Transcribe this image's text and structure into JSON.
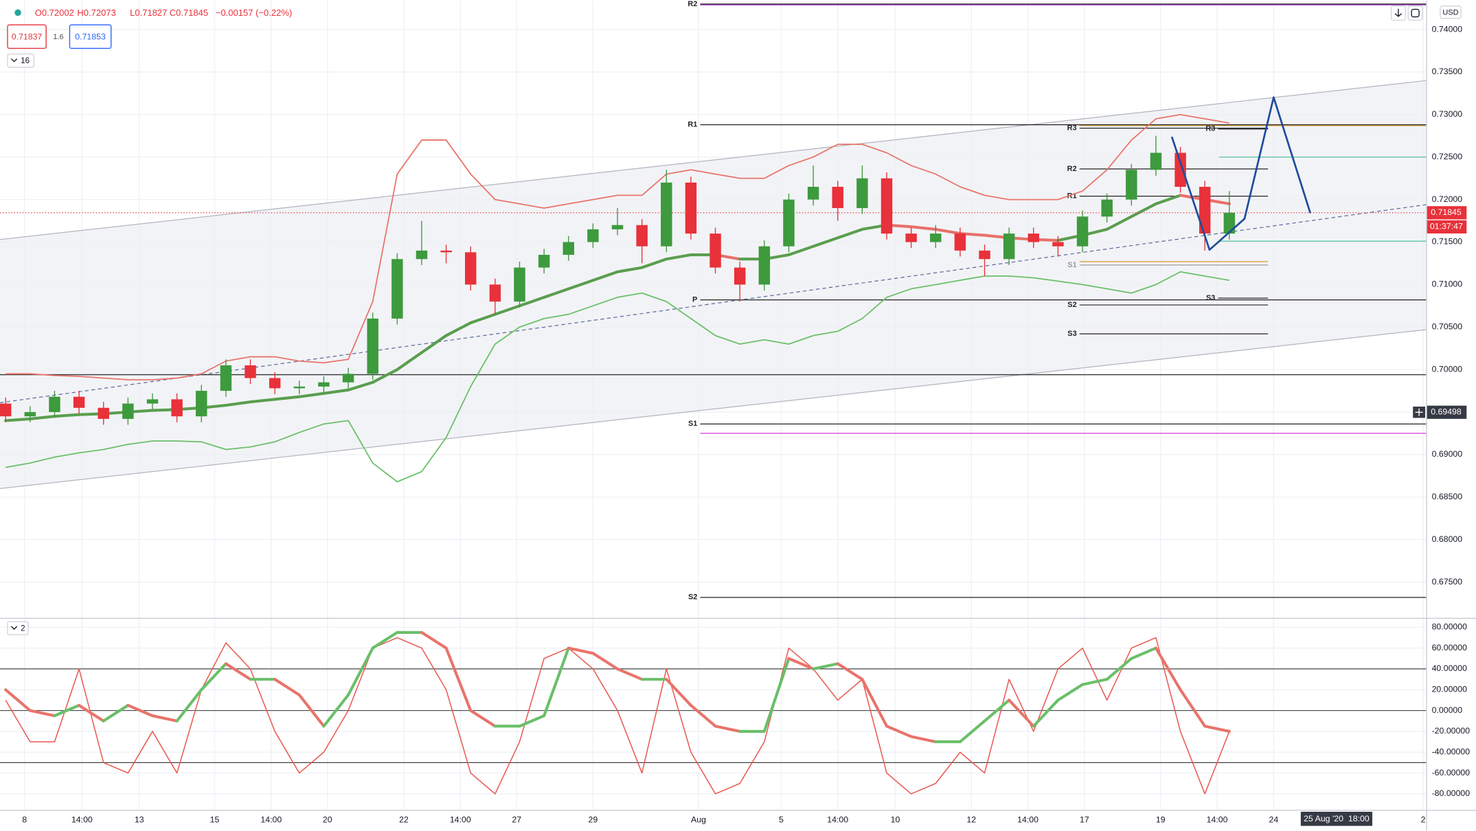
{
  "header": {
    "ohlc": [
      "O0.72002",
      "H0.72073",
      "L0.71827",
      "C0.71845"
    ],
    "change": "−0.00157 (−0.22%)",
    "bid": "0.71837",
    "spread": "1.6",
    "ask": "0.71853",
    "indicator_count": "16",
    "oscillator_count": "2",
    "currency": "USD"
  },
  "chart_data": [
    {
      "type": "candlestick",
      "x": [
        0,
        1,
        2,
        3,
        4,
        5,
        6,
        7,
        8,
        9,
        10,
        11,
        12,
        13,
        14,
        15,
        16,
        17,
        18,
        19,
        20,
        21,
        22,
        23,
        24,
        25,
        26,
        27,
        28,
        29,
        30,
        31,
        32,
        33,
        34,
        35,
        36,
        37,
        38,
        39,
        40,
        41,
        42,
        43,
        44,
        45,
        46,
        47,
        48,
        49,
        50
      ],
      "open": [
        0.696,
        0.6945,
        0.695,
        0.6968,
        0.6955,
        0.6942,
        0.696,
        0.6965,
        0.6945,
        0.6975,
        0.7005,
        0.699,
        0.6978,
        0.698,
        0.6985,
        0.6995,
        0.706,
        0.713,
        0.714,
        0.7138,
        0.71,
        0.708,
        0.712,
        0.7135,
        0.715,
        0.7165,
        0.717,
        0.7145,
        0.722,
        0.716,
        0.712,
        0.71,
        0.7145,
        0.72,
        0.7215,
        0.719,
        0.7225,
        0.716,
        0.715,
        0.716,
        0.714,
        0.713,
        0.716,
        0.715,
        0.7145,
        0.718,
        0.72,
        0.7235,
        0.7255,
        0.7215,
        0.716
      ],
      "high": [
        0.6967,
        0.6957,
        0.6975,
        0.6975,
        0.6962,
        0.6967,
        0.6972,
        0.6972,
        0.6982,
        0.7012,
        0.7012,
        0.6997,
        0.6987,
        0.6992,
        0.7002,
        0.7067,
        0.7137,
        0.7175,
        0.7147,
        0.7145,
        0.7107,
        0.7127,
        0.7142,
        0.7157,
        0.7172,
        0.719,
        0.7177,
        0.7235,
        0.7227,
        0.7167,
        0.7127,
        0.7152,
        0.7207,
        0.724,
        0.7222,
        0.724,
        0.7232,
        0.7167,
        0.717,
        0.7167,
        0.7147,
        0.7167,
        0.7167,
        0.7157,
        0.7187,
        0.7207,
        0.7242,
        0.7275,
        0.7262,
        0.7222,
        0.721
      ],
      "low": [
        0.6938,
        0.6938,
        0.6943,
        0.6948,
        0.6935,
        0.6935,
        0.6953,
        0.6938,
        0.6938,
        0.6968,
        0.6983,
        0.6971,
        0.6971,
        0.6973,
        0.6978,
        0.6988,
        0.7053,
        0.7123,
        0.7125,
        0.7093,
        0.7065,
        0.7073,
        0.7113,
        0.7128,
        0.7143,
        0.7158,
        0.7125,
        0.7138,
        0.7153,
        0.7113,
        0.708,
        0.7093,
        0.7138,
        0.7193,
        0.7175,
        0.7183,
        0.7153,
        0.7143,
        0.7143,
        0.7133,
        0.711,
        0.7123,
        0.7143,
        0.7133,
        0.7138,
        0.7173,
        0.7193,
        0.7228,
        0.7208,
        0.714,
        0.7153
      ],
      "close": [
        0.6945,
        0.695,
        0.6968,
        0.6955,
        0.6942,
        0.696,
        0.6965,
        0.6945,
        0.6975,
        0.7005,
        0.699,
        0.6978,
        0.698,
        0.6985,
        0.6995,
        0.706,
        0.713,
        0.714,
        0.7138,
        0.71,
        0.708,
        0.712,
        0.7135,
        0.715,
        0.7165,
        0.717,
        0.7145,
        0.722,
        0.716,
        0.712,
        0.71,
        0.7145,
        0.72,
        0.7215,
        0.719,
        0.7225,
        0.716,
        0.715,
        0.716,
        0.714,
        0.713,
        0.716,
        0.715,
        0.7145,
        0.718,
        0.72,
        0.7235,
        0.7255,
        0.7215,
        0.716,
        0.71845
      ],
      "up_color": "#3d9a3d",
      "down_color": "#e8313a",
      "bands": {
        "upper": {
          "color": "#e8746b",
          "values": [
            0.6995,
            0.6995,
            0.6993,
            0.6992,
            0.699,
            0.6988,
            0.6988,
            0.699,
            0.6995,
            0.701,
            0.7015,
            0.7015,
            0.701,
            0.7008,
            0.7012,
            0.708,
            0.723,
            0.727,
            0.727,
            0.723,
            0.72,
            0.7195,
            0.719,
            0.7195,
            0.72,
            0.7205,
            0.7205,
            0.723,
            0.7235,
            0.723,
            0.7225,
            0.7225,
            0.724,
            0.725,
            0.7265,
            0.7265,
            0.7255,
            0.724,
            0.723,
            0.7215,
            0.7205,
            0.72,
            0.72,
            0.72,
            0.721,
            0.7235,
            0.727,
            0.7295,
            0.73,
            0.7295,
            0.729
          ]
        },
        "middle": {
          "up_color": "#5a9e4f",
          "down_color": "#e8706a",
          "values": [
            0.694,
            0.6942,
            0.6945,
            0.6947,
            0.6948,
            0.695,
            0.6952,
            0.6953,
            0.6955,
            0.6958,
            0.6962,
            0.6965,
            0.6968,
            0.6972,
            0.6976,
            0.6985,
            0.7,
            0.702,
            0.704,
            0.7055,
            0.7065,
            0.7075,
            0.7085,
            0.7095,
            0.7105,
            0.7115,
            0.712,
            0.713,
            0.7135,
            0.7135,
            0.713,
            0.713,
            0.7135,
            0.7145,
            0.7155,
            0.7165,
            0.717,
            0.7168,
            0.7165,
            0.716,
            0.7158,
            0.7155,
            0.7153,
            0.7152,
            0.7158,
            0.7165,
            0.718,
            0.7195,
            0.7205,
            0.72,
            0.7195
          ]
        },
        "lower": {
          "color": "#6abf69",
          "values": [
            0.6885,
            0.689,
            0.6897,
            0.6902,
            0.6906,
            0.6912,
            0.6916,
            0.6916,
            0.6915,
            0.6906,
            0.6909,
            0.6915,
            0.6926,
            0.6936,
            0.694,
            0.689,
            0.6868,
            0.688,
            0.692,
            0.698,
            0.703,
            0.705,
            0.706,
            0.7065,
            0.7075,
            0.7085,
            0.709,
            0.708,
            0.706,
            0.704,
            0.703,
            0.7035,
            0.703,
            0.704,
            0.7045,
            0.706,
            0.7085,
            0.7095,
            0.71,
            0.7105,
            0.711,
            0.711,
            0.7108,
            0.7104,
            0.71,
            0.7095,
            0.709,
            0.71,
            0.7115,
            0.711,
            0.7105
          ]
        }
      },
      "xlim": [
        -0.23,
        58.04
      ],
      "ylim": [
        0.6709,
        0.74343
      ],
      "yticks": [
        {
          "value": 0.74,
          "label": "0.74000"
        },
        {
          "value": 0.735,
          "label": "0.73500"
        },
        {
          "value": 0.73,
          "label": "0.73000"
        },
        {
          "value": 0.725,
          "label": "0.72500"
        },
        {
          "value": 0.72,
          "label": "0.72000"
        },
        {
          "value": 0.715,
          "label": "0.71500"
        },
        {
          "value": 0.71,
          "label": "0.71000"
        },
        {
          "value": 0.705,
          "label": "0.70500"
        },
        {
          "value": 0.7,
          "label": "0.70000"
        },
        {
          "value": 0.695,
          "label": "0.69500"
        },
        {
          "value": 0.69,
          "label": "0.69000"
        },
        {
          "value": 0.685,
          "label": "0.68500"
        },
        {
          "value": 0.68,
          "label": "0.68000"
        },
        {
          "value": 0.675,
          "label": "0.67500"
        }
      ],
      "xticks": [
        {
          "value": 0.77,
          "label": "8"
        },
        {
          "value": 3.12,
          "label": "14:00"
        },
        {
          "value": 5.46,
          "label": "13"
        },
        {
          "value": 8.54,
          "label": "15"
        },
        {
          "value": 10.85,
          "label": "14:00"
        },
        {
          "value": 13.15,
          "label": "20"
        },
        {
          "value": 16.27,
          "label": "22"
        },
        {
          "value": 18.58,
          "label": "14:00"
        },
        {
          "value": 20.88,
          "label": "27"
        },
        {
          "value": 24,
          "label": "29"
        },
        {
          "value": 28.31,
          "label": "Aug"
        },
        {
          "value": 31.69,
          "label": "5"
        },
        {
          "value": 34,
          "label": "14:00"
        },
        {
          "value": 36.35,
          "label": "10"
        },
        {
          "value": 39.46,
          "label": "12"
        },
        {
          "value": 41.77,
          "label": "14:00"
        },
        {
          "value": 44.08,
          "label": "17"
        },
        {
          "value": 47.19,
          "label": "19"
        },
        {
          "value": 49.5,
          "label": "14:00"
        },
        {
          "value": 51.81,
          "label": "24"
        },
        {
          "value": 57.92,
          "label": "2"
        }
      ],
      "grid": true,
      "channel": {
        "x": [
          -0.23,
          58.04
        ],
        "upper": [
          0.7153,
          0.734
        ],
        "lower": [
          0.686,
          0.7047
        ],
        "median": [
          0.6961,
          0.7194
        ],
        "color": "#b0b4bd",
        "fill": "#eceef2",
        "median_color": "#5b6a9b"
      },
      "projection": {
        "x": [
          47.65,
          49.19,
          50.62,
          51.81,
          53.31
        ],
        "values": [
          0.72738,
          0.71409,
          0.71774,
          0.73203,
          0.7184
        ],
        "color": "#1f4e9c"
      },
      "levels": [
        {
          "name": "R2",
          "value": 0.743,
          "color": "#222222",
          "x": [
            28.38,
            58.04
          ]
        },
        {
          "name": "R1",
          "value": 0.7288,
          "color": "#222222",
          "x": [
            28.38,
            58.04
          ]
        },
        {
          "name": "P",
          "value": 0.7082,
          "color": "#222222",
          "x": [
            28.38,
            58.04
          ]
        },
        {
          "name": "S1",
          "value": 0.6936,
          "color": "#222222",
          "x": [
            28.38,
            58.04
          ]
        },
        {
          "name": "S2",
          "value": 0.6732,
          "color": "#222222",
          "x": [
            28.38,
            58.04
          ]
        },
        {
          "name": "R3",
          "value": 0.7284,
          "color": "#222222",
          "x": [
            43.88,
            51.58
          ]
        },
        {
          "name": "R2",
          "value": 0.7236,
          "color": "#222222",
          "x": [
            43.88,
            51.58
          ]
        },
        {
          "name": "R1",
          "value": 0.7204,
          "color": "#222222",
          "x": [
            43.88,
            51.58
          ]
        },
        {
          "name": "S1",
          "value": 0.7123,
          "color": "#999999",
          "x": [
            43.88,
            51.58
          ]
        },
        {
          "name": "S2",
          "value": 0.7076,
          "color": "#222222",
          "x": [
            43.88,
            51.58
          ]
        },
        {
          "name": "S3",
          "value": 0.7042,
          "color": "#222222",
          "x": [
            43.88,
            51.58
          ]
        },
        {
          "name": "R3",
          "value": 0.7283,
          "color": "#222222",
          "x": [
            49.54,
            51.58
          ]
        },
        {
          "name": "S3",
          "value": 0.7084,
          "color": "#222222",
          "x": [
            49.54,
            51.58
          ]
        }
      ],
      "lines": [
        {
          "value": 0.6994,
          "color": "#333333",
          "x": [
            -0.23,
            58.04
          ]
        },
        {
          "value": 0.7429,
          "color": "#b44cc9",
          "x": [
            28.38,
            58.04
          ]
        },
        {
          "value": 0.6925,
          "color": "#d84fd8",
          "x": [
            28.38,
            58.04
          ]
        },
        {
          "value": 0.725,
          "color": "#5fc4a8",
          "x": [
            49.58,
            58.04
          ]
        },
        {
          "value": 0.7151,
          "color": "#5fc4a8",
          "x": [
            49.58,
            58.04
          ]
        },
        {
          "value": 0.7287,
          "color": "#e0a23a",
          "x": [
            43.88,
            58.04
          ]
        },
        {
          "value": 0.7127,
          "color": "#e0a23a",
          "x": [
            43.88,
            51.58
          ]
        }
      ],
      "last_price": {
        "value": 0.71845,
        "label": "0.71845",
        "color": "#e8313a",
        "countdown": "01:37:47"
      },
      "crosshair": {
        "price": {
          "value": 0.69498,
          "label": "0.69498"
        },
        "time": {
          "value": 54.38,
          "label": "25 Aug '20  18:00"
        }
      }
    },
    {
      "type": "line",
      "ylim": [
        -95.4,
        87.2
      ],
      "yticks": [
        {
          "value": 80,
          "label": "80.00000"
        },
        {
          "value": 60,
          "label": "60.00000"
        },
        {
          "value": 40,
          "label": "40.00000"
        },
        {
          "value": 20,
          "label": "20.00000"
        },
        {
          "value": 0,
          "label": "0.00000"
        },
        {
          "value": -20,
          "label": "-20.00000"
        },
        {
          "value": -40,
          "label": "-40.00000"
        },
        {
          "value": -60,
          "label": "-60.00000"
        },
        {
          "value": -80,
          "label": "-80.00000"
        }
      ],
      "levels": [
        40,
        0,
        -50
      ],
      "series": [
        {
          "color": "#e8574f",
          "values": [
            10,
            -30,
            -30,
            40,
            -50,
            -60,
            -20,
            -60,
            20,
            65,
            40,
            -20,
            -60,
            -40,
            0,
            60,
            70,
            60,
            20,
            -60,
            -80,
            -30,
            50,
            60,
            40,
            0,
            -60,
            40,
            -40,
            -80,
            -70,
            -30,
            60,
            40,
            10,
            30,
            -60,
            -80,
            -70,
            -40,
            -60,
            30,
            -20,
            40,
            60,
            10,
            60,
            70,
            -20,
            -80,
            -20
          ]
        },
        {
          "up_color": "#6abf69",
          "down_color": "#e8746b",
          "values": [
            20,
            0,
            -5,
            5,
            -10,
            5,
            -5,
            -10,
            20,
            45,
            30,
            30,
            15,
            -15,
            15,
            60,
            75,
            75,
            60,
            0,
            -15,
            -15,
            -5,
            60,
            55,
            40,
            30,
            30,
            5,
            -15,
            -20,
            -20,
            50,
            40,
            45,
            30,
            -15,
            -25,
            -30,
            -30,
            -10,
            10,
            -15,
            10,
            25,
            30,
            50,
            60,
            20,
            -15,
            -20
          ]
        }
      ]
    }
  ]
}
